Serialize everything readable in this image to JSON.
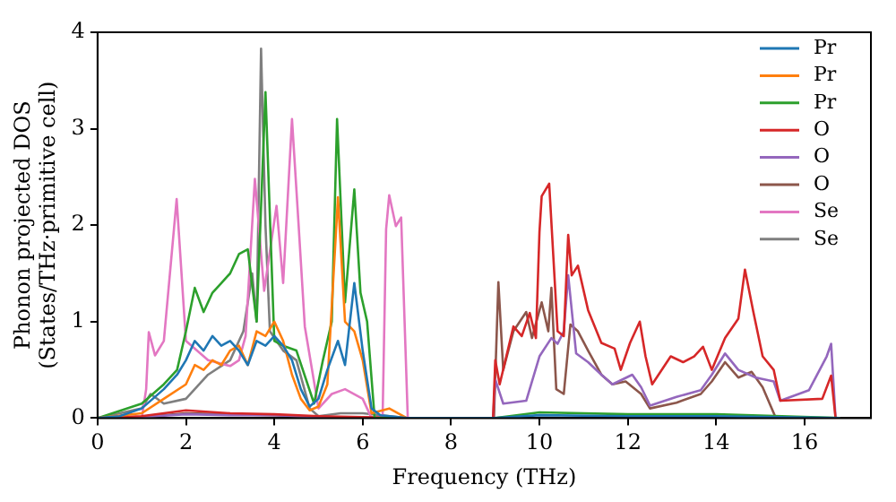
{
  "chart_data": {
    "type": "line",
    "xlabel": "Frequency (THz)",
    "ylabel": "Phonon projected DOS\n(States/THz·primitive cell)",
    "xlim": [
      0,
      17.5
    ],
    "xticks": [
      0,
      2,
      4,
      6,
      8,
      10,
      12,
      14,
      16
    ],
    "ylim": [
      0,
      4
    ],
    "yticks": [
      0,
      1,
      2,
      3,
      4
    ],
    "grid": false,
    "legend": "top right",
    "marker": "none",
    "line_style": "solid",
    "series": [
      {
        "name": "Pr",
        "color": "#1f77b4",
        "x": [
          0,
          0.5,
          1,
          1.5,
          1.8,
          2,
          2.2,
          2.4,
          2.6,
          2.8,
          3,
          3.2,
          3.4,
          3.6,
          3.8,
          4,
          4.2,
          4.4,
          4.6,
          4.8,
          5,
          5.2,
          5.44,
          5.6,
          5.81,
          6,
          6.2,
          6.4,
          6.6,
          7,
          9,
          10,
          12,
          14,
          16.8
        ],
        "values": [
          0,
          0.02,
          0.1,
          0.3,
          0.45,
          0.6,
          0.8,
          0.7,
          0.85,
          0.75,
          0.8,
          0.7,
          0.55,
          0.8,
          0.75,
          0.85,
          0.75,
          0.6,
          0.3,
          0.12,
          0.2,
          0.5,
          0.8,
          0.55,
          1.4,
          0.7,
          0.1,
          0.03,
          0.02,
          0,
          0,
          0.03,
          0.02,
          0.02,
          0
        ]
      },
      {
        "name": "Pr",
        "color": "#ff7f0e",
        "x": [
          0,
          1,
          1.5,
          2,
          2.2,
          2.4,
          2.6,
          2.8,
          3,
          3.2,
          3.4,
          3.6,
          3.8,
          4,
          4.2,
          4.4,
          4.6,
          4.8,
          5,
          5.2,
          5.44,
          5.6,
          5.81,
          6,
          6.2,
          6.6,
          7
        ],
        "values": [
          0,
          0.05,
          0.2,
          0.35,
          0.55,
          0.5,
          0.6,
          0.55,
          0.7,
          0.75,
          0.55,
          0.9,
          0.85,
          1,
          0.8,
          0.45,
          0.2,
          0.08,
          0.12,
          0.35,
          2.29,
          1,
          0.9,
          0.6,
          0.05,
          0.1,
          0
        ]
      },
      {
        "name": "Pr",
        "color": "#2ca02c",
        "x": [
          0,
          1,
          1.5,
          1.8,
          2,
          2.2,
          2.4,
          2.6,
          2.8,
          3,
          3.2,
          3.4,
          3.6,
          3.8,
          4,
          4.2,
          4.5,
          4.9,
          5.1,
          5.3,
          5.42,
          5.6,
          5.81,
          5.95,
          6.1,
          6.27,
          7,
          9,
          10,
          12,
          14,
          16.8
        ],
        "values": [
          0,
          0.15,
          0.35,
          0.5,
          0.9,
          1.35,
          1.1,
          1.3,
          1.4,
          1.5,
          1.7,
          1.75,
          1,
          3.38,
          0.8,
          0.75,
          0.7,
          0.15,
          0.6,
          1,
          3.1,
          1.2,
          2.37,
          1.3,
          1,
          0,
          0,
          0,
          0.06,
          0.04,
          0.04,
          0
        ]
      },
      {
        "name": "O",
        "color": "#d62728",
        "x": [
          0,
          1,
          2,
          3,
          4,
          5,
          7,
          8.95,
          9,
          9.1,
          9.41,
          9.6,
          9.78,
          9.92,
          10,
          10.05,
          10.22,
          10.41,
          10.55,
          10.65,
          10.73,
          10.87,
          11.1,
          11.4,
          11.7,
          11.84,
          12.05,
          12.27,
          12.4,
          12.55,
          12.97,
          13.25,
          13.5,
          13.7,
          13.9,
          14.2,
          14.5,
          14.65,
          14.84,
          15.05,
          15.3,
          15.45,
          16.4,
          16.6,
          16.7
        ],
        "values": [
          0,
          0.02,
          0.08,
          0.05,
          0.04,
          0.02,
          0,
          0,
          0.6,
          0.35,
          0.95,
          0.85,
          1.09,
          0.83,
          1.93,
          2.3,
          2.43,
          0.9,
          0.85,
          1.9,
          1.48,
          1.58,
          1.12,
          0.78,
          0.72,
          0.5,
          0.78,
          1,
          0.64,
          0.35,
          0.64,
          0.58,
          0.64,
          0.74,
          0.5,
          0.83,
          1.03,
          1.54,
          1.1,
          0.64,
          0.5,
          0.18,
          0.2,
          0.44,
          0
        ]
      },
      {
        "name": "O",
        "color": "#9467bd",
        "x": [
          0,
          1,
          2,
          3,
          4,
          5,
          7,
          8.95,
          9,
          9.18,
          9.7,
          10,
          10.27,
          10.41,
          10.55,
          10.65,
          10.83,
          11.1,
          11.4,
          11.65,
          12.1,
          12.3,
          12.5,
          13.1,
          13.65,
          13.9,
          14.2,
          14.5,
          14.9,
          15.3,
          15.45,
          16.1,
          16.5,
          16.6,
          16.7
        ],
        "values": [
          0,
          0.01,
          0.04,
          0.03,
          0.03,
          0.01,
          0,
          0,
          0.4,
          0.15,
          0.18,
          0.64,
          0.83,
          0.77,
          0.9,
          1.48,
          0.67,
          0.58,
          0.45,
          0.35,
          0.45,
          0.32,
          0.13,
          0.22,
          0.29,
          0.45,
          0.67,
          0.5,
          0.42,
          0.38,
          0.18,
          0.29,
          0.64,
          0.77,
          0
        ]
      },
      {
        "name": "O",
        "color": "#8c564b",
        "x": [
          0,
          1,
          2,
          3,
          4,
          5,
          7,
          8.97,
          9.07,
          9.18,
          9.41,
          9.7,
          9.83,
          10.05,
          10.2,
          10.27,
          10.38,
          10.55,
          10.7,
          10.87,
          11.1,
          11.4,
          11.65,
          11.95,
          12.3,
          12.5,
          13.1,
          13.65,
          13.9,
          14.2,
          14.5,
          14.8,
          15.05,
          15.35,
          16.8
        ],
        "values": [
          0,
          0.01,
          0.05,
          0.04,
          0.03,
          0.01,
          0,
          0,
          1.41,
          0.5,
          0.9,
          1.1,
          0.83,
          1.2,
          0.9,
          1.35,
          0.3,
          0.25,
          0.97,
          0.9,
          0.7,
          0.45,
          0.35,
          0.38,
          0.25,
          0.1,
          0.16,
          0.25,
          0.38,
          0.58,
          0.42,
          0.48,
          0.32,
          0,
          0
        ]
      },
      {
        "name": "Se",
        "color": "#e377c2",
        "x": [
          0,
          1,
          1.1,
          1.16,
          1.3,
          1.5,
          1.79,
          2,
          2.5,
          3,
          3.2,
          3.35,
          3.56,
          3.77,
          4.05,
          4.2,
          4.4,
          4.55,
          4.69,
          5,
          5.3,
          5.6,
          6,
          6.2,
          6.45,
          6.53,
          6.6,
          6.75,
          6.87,
          7.02
        ],
        "values": [
          0,
          0,
          0.3,
          0.89,
          0.65,
          0.8,
          2.27,
          0.8,
          0.6,
          0.54,
          0.6,
          0.85,
          2.48,
          1.32,
          2.2,
          1.4,
          3.1,
          2,
          0.95,
          0.1,
          0.25,
          0.3,
          0.2,
          0,
          0,
          1.96,
          2.31,
          1.99,
          2.08,
          0
        ]
      },
      {
        "name": "Se",
        "color": "#7f7f7f",
        "x": [
          0,
          1,
          1.2,
          1.5,
          2,
          2.5,
          3,
          3.3,
          3.5,
          3.6,
          3.7,
          3.8,
          3.9,
          4.2,
          4.5,
          4.8,
          5,
          5.5,
          6,
          7
        ],
        "values": [
          0,
          0.1,
          0.25,
          0.15,
          0.2,
          0.45,
          0.6,
          0.9,
          1.5,
          1,
          3.83,
          2,
          0.9,
          0.7,
          0.6,
          0.1,
          0.02,
          0.05,
          0.05,
          0
        ]
      }
    ]
  }
}
